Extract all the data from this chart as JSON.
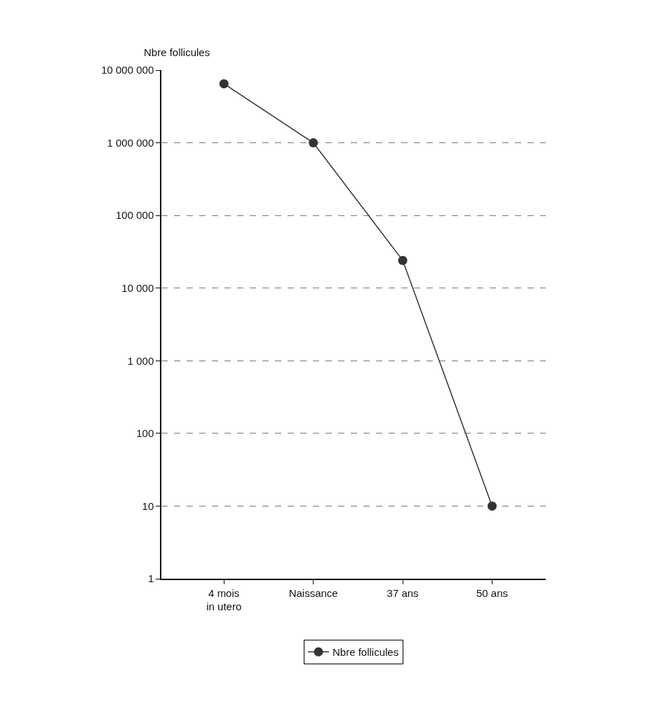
{
  "chart_data": {
    "type": "line",
    "ylabel": "Nbre follicules",
    "categories": [
      "4 mois\nin utero",
      "Naissance",
      "37 ans",
      "50 ans"
    ],
    "series": [
      {
        "name": "Nbre follicules",
        "color": "#333333",
        "values": [
          6500000,
          1000000,
          24000,
          10
        ]
      }
    ],
    "log": "y",
    "ylim": [
      1,
      10000000
    ],
    "yticks": [
      1,
      10,
      100,
      {
        "value": 1000,
        "label": "1 000"
      },
      {
        "value": 10000,
        "label": "10 000"
      },
      {
        "value": 100000,
        "label": "100 000"
      },
      {
        "value": 1000000,
        "label": "1 000 000"
      },
      {
        "value": 10000000,
        "label": "10 000 000"
      }
    ],
    "grid": "y",
    "legend": "bottom",
    "marker": "circle",
    "line_style": "solid"
  }
}
